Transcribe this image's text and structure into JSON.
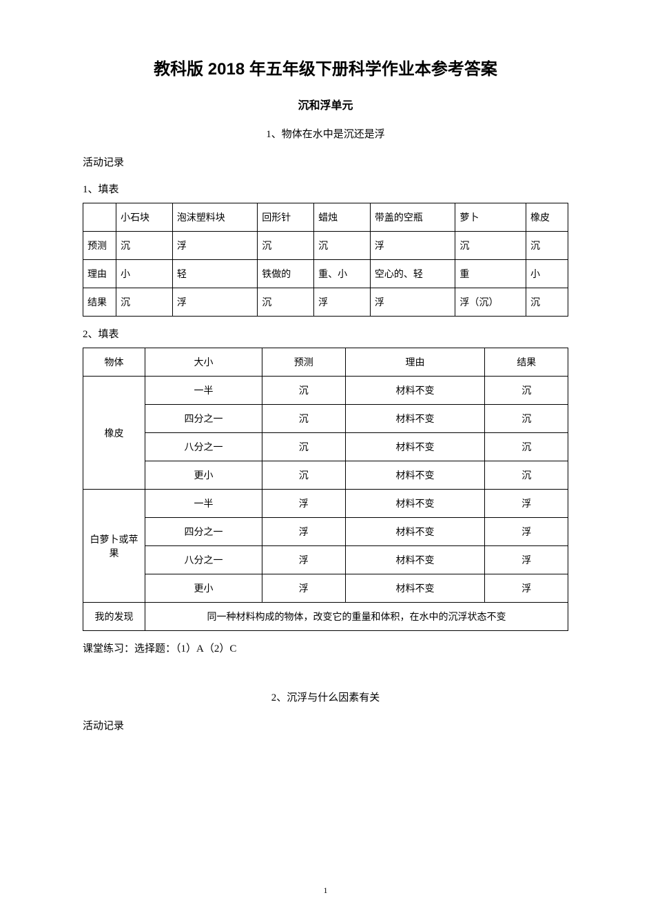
{
  "title": "教科版 2018 年五年级下册科学作业本参考答案",
  "unit": "沉和浮单元",
  "section1": {
    "heading": "1、物体在水中是沉还是浮",
    "activity_label": "活动记录",
    "sub1_label": "1、填表",
    "table1": {
      "headers": [
        "",
        "小石块",
        "泡沫塑料块",
        "回形针",
        "蜡烛",
        "带盖的空瓶",
        "萝卜",
        "橡皮"
      ],
      "rows": [
        [
          "预测",
          "沉",
          "浮",
          "沉",
          "沉",
          "浮",
          "沉",
          "沉"
        ],
        [
          "理由",
          "小",
          "轻",
          "铁做的",
          "重、小",
          "空心的、轻",
          "重",
          "小"
        ],
        [
          "结果",
          "沉",
          "浮",
          "沉",
          "浮",
          "浮",
          "浮（沉）",
          "沉"
        ]
      ]
    },
    "sub2_label": "2、填表",
    "table2": {
      "headers": [
        "物体",
        "大小",
        "预测",
        "理由",
        "结果"
      ],
      "group1": {
        "name": "橡皮",
        "rows": [
          [
            "一半",
            "沉",
            "材料不变",
            "沉"
          ],
          [
            "四分之一",
            "沉",
            "材料不变",
            "沉"
          ],
          [
            "八分之一",
            "沉",
            "材料不变",
            "沉"
          ],
          [
            "更小",
            "沉",
            "材料不变",
            "沉"
          ]
        ]
      },
      "group2": {
        "name": "白萝卜或苹果",
        "rows": [
          [
            "一半",
            "浮",
            "材料不变",
            "浮"
          ],
          [
            "四分之一",
            "浮",
            "材料不变",
            "浮"
          ],
          [
            "八分之一",
            "浮",
            "材料不变",
            "浮"
          ],
          [
            "更小",
            "浮",
            "材料不变",
            "浮"
          ]
        ]
      },
      "finding_label": "我的发现",
      "finding_text": "同一种材料构成的物体，改变它的重量和体积，在水中的沉浮状态不变"
    },
    "practice": "课堂练习：选择题：（1）A（2）C"
  },
  "section2": {
    "heading": "2、沉浮与什么因素有关",
    "activity_label": "活动记录"
  },
  "page_number": "1",
  "colors": {
    "background": "#ffffff",
    "text": "#000000",
    "border": "#000000"
  },
  "fonts": {
    "title_size": 24,
    "body_size": 15,
    "table_size": 14
  }
}
